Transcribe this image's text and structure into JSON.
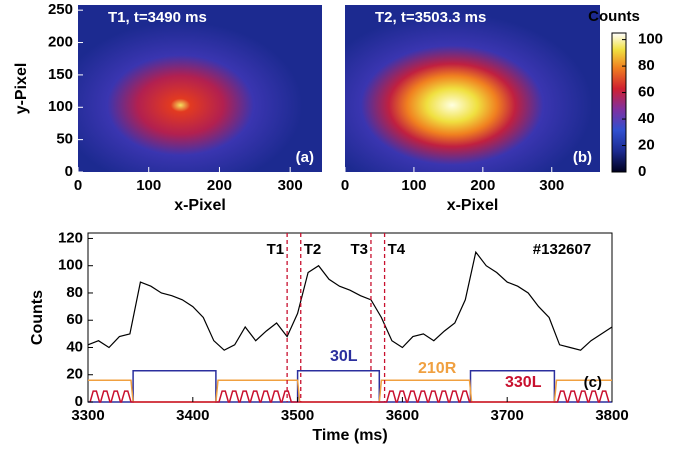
{
  "chart_data": [
    {
      "type": "heatmap",
      "title": "T1, t=3490 ms",
      "panel_label": "(a)",
      "xlabel": "x-Pixel",
      "ylabel": "y-Pixel",
      "xlim": [
        0,
        345
      ],
      "ylim": [
        0,
        258
      ],
      "xticks": [
        0,
        100,
        200,
        300
      ],
      "yticks": [
        0,
        50,
        100,
        150,
        200,
        250
      ]
    },
    {
      "type": "heatmap",
      "title": "T2, t=3503.3 ms",
      "panel_label": "(b)",
      "xlabel": "x-Pixel",
      "xlim": [
        0,
        370
      ],
      "ylim": [
        0,
        258
      ],
      "xticks": [
        0,
        100,
        200,
        300
      ],
      "colorbar": {
        "title": "Counts",
        "lim": [
          0,
          105
        ],
        "ticks": [
          0,
          20,
          40,
          60,
          80,
          100
        ]
      }
    },
    {
      "type": "line",
      "xlabel": "Time (ms)",
      "ylabel": "Counts",
      "annotation": "#132607",
      "panel_label": "(c)",
      "xlim": [
        3300,
        3800
      ],
      "ylim": [
        0,
        124
      ],
      "xticks": [
        3300,
        3400,
        3500,
        3600,
        3700,
        3800
      ],
      "yticks": [
        0,
        20,
        40,
        60,
        80,
        100,
        120
      ],
      "markers": [
        {
          "label": "T1",
          "x": 3490
        },
        {
          "label": "T2",
          "x": 3503
        },
        {
          "label": "T3",
          "x": 3570
        },
        {
          "label": "T4",
          "x": 3583
        }
      ],
      "series": [
        {
          "color": "#000000",
          "x": [
            3300,
            3310,
            3320,
            3330,
            3340,
            3350,
            3360,
            3370,
            3380,
            3390,
            3400,
            3410,
            3420,
            3430,
            3440,
            3450,
            3460,
            3470,
            3480,
            3490,
            3500,
            3510,
            3520,
            3530,
            3540,
            3550,
            3560,
            3570,
            3580,
            3590,
            3600,
            3610,
            3620,
            3630,
            3640,
            3650,
            3660,
            3670,
            3680,
            3690,
            3700,
            3710,
            3720,
            3730,
            3740,
            3750,
            3760,
            3770,
            3780,
            3790,
            3800
          ],
          "values": [
            42,
            45,
            40,
            48,
            50,
            88,
            85,
            80,
            78,
            75,
            70,
            62,
            45,
            38,
            42,
            55,
            45,
            52,
            58,
            48,
            65,
            95,
            100,
            90,
            85,
            82,
            78,
            75,
            62,
            45,
            40,
            48,
            50,
            45,
            52,
            58,
            75,
            110,
            100,
            95,
            88,
            85,
            80,
            70,
            62,
            42,
            40,
            38,
            45,
            50,
            55
          ]
        },
        {
          "name": "30L",
          "color": "#2b2f9e",
          "x": [
            3300,
            3343,
            3343,
            3422,
            3422,
            3500,
            3500,
            3578,
            3578,
            3665,
            3665,
            3745,
            3745,
            3800
          ],
          "values": [
            0,
            0,
            23,
            23,
            0,
            0,
            23,
            23,
            0,
            0,
            23,
            23,
            0,
            0
          ]
        },
        {
          "name": "210R",
          "color": "#f0a040",
          "x": [
            3300,
            3341,
            3343,
            3422,
            3424,
            3500,
            3502,
            3578,
            3580,
            3664,
            3666,
            3745,
            3747,
            3800
          ],
          "values": [
            16,
            16,
            0,
            0,
            16,
            16,
            0,
            0,
            16,
            16,
            0,
            0,
            16,
            16
          ]
        },
        {
          "name": "330L",
          "color": "#c8102e",
          "x": [
            3302,
            3305,
            3308,
            3311,
            3312,
            3315,
            3318,
            3321,
            3322,
            3325,
            3328,
            3331,
            3332,
            3335,
            3338,
            3341,
            3425,
            3428,
            3431,
            3434,
            3435,
            3438,
            3441,
            3444,
            3445,
            3448,
            3451,
            3454,
            3455,
            3458,
            3461,
            3464,
            3465,
            3468,
            3471,
            3474,
            3475,
            3478,
            3481,
            3484,
            3485,
            3488,
            3491,
            3494,
            3585,
            3588,
            3591,
            3594,
            3595,
            3598,
            3601,
            3604,
            3605,
            3608,
            3611,
            3614,
            3615,
            3618,
            3621,
            3624,
            3625,
            3628,
            3631,
            3634,
            3635,
            3638,
            3641,
            3644,
            3645,
            3648,
            3651,
            3654,
            3655,
            3658,
            3661,
            3664,
            3748,
            3751,
            3754,
            3757,
            3758,
            3761,
            3764,
            3767,
            3768,
            3771,
            3774,
            3777,
            3778,
            3781,
            3784,
            3787,
            3788,
            3791,
            3794,
            3797
          ],
          "values": [
            0,
            8,
            8,
            0,
            0,
            8,
            8,
            0,
            0,
            8,
            8,
            0,
            0,
            8,
            8,
            0,
            0,
            8,
            8,
            0,
            0,
            8,
            8,
            0,
            0,
            8,
            8,
            0,
            0,
            8,
            8,
            0,
            0,
            8,
            8,
            0,
            0,
            8,
            8,
            0,
            0,
            8,
            8,
            0,
            0,
            8,
            8,
            0,
            0,
            8,
            8,
            0,
            0,
            8,
            8,
            0,
            0,
            8,
            8,
            0,
            0,
            8,
            8,
            0,
            0,
            8,
            8,
            0,
            0,
            8,
            8,
            0,
            0,
            8,
            8,
            0,
            0,
            8,
            8,
            0,
            0,
            8,
            8,
            0,
            0,
            8,
            8,
            0,
            0,
            8,
            8,
            0,
            0,
            8,
            8,
            0
          ]
        }
      ]
    }
  ]
}
